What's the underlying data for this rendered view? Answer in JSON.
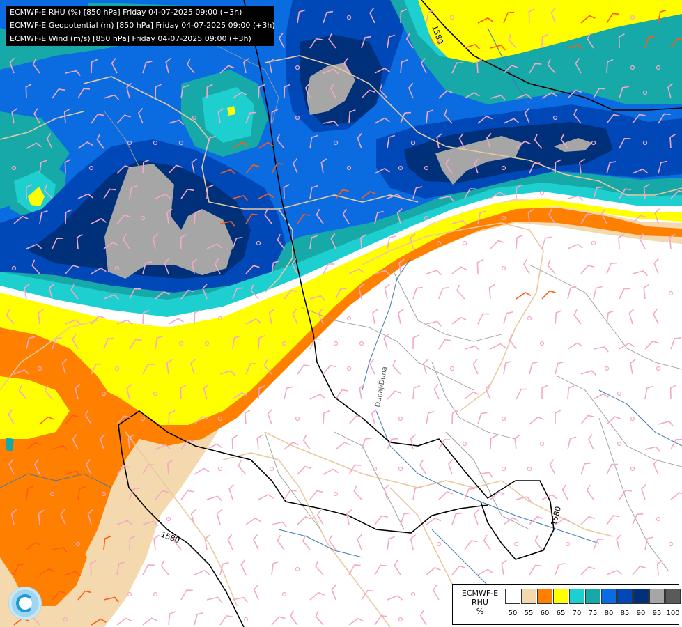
{
  "header": {
    "line1": "ECMWF-E RHU (%) [850 hPa] Friday 04-07-2025 09:00 (+3h)",
    "line2": "ECMWF-E Geopotential (m) [850 hPa] Friday 04-07-2025 09:00 (+3h)",
    "line3": "ECMWF-E Wind (m/s) [850 hPa] Friday 04-07-2025 09:00 (+3h)"
  },
  "contour_labels": [
    "1580",
    "1580",
    "1580"
  ],
  "river_label": "Dunaj/Duna",
  "legend": {
    "model": "ECMWF-E",
    "variable": "RHU",
    "unit": "%",
    "levels": [
      "50",
      "55",
      "60",
      "65",
      "70",
      "75",
      "80",
      "85",
      "90",
      "95",
      "100"
    ],
    "colors": [
      "#ffffff",
      "#f5d9ae",
      "#ff8000",
      "#ffff00",
      "#1ecfcf",
      "#17a8a8",
      "#0a6ce0",
      "#0048b8",
      "#00307a",
      "#a6a6a6",
      "#5a5a5a"
    ]
  },
  "logo": "ecmwf-logo-icon"
}
